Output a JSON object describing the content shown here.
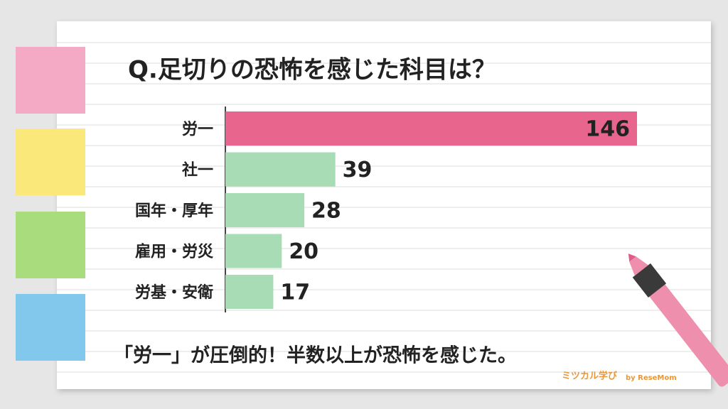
{
  "chart_data": {
    "type": "bar",
    "orientation": "horizontal",
    "title": "Q.足切りの恐怖を感じた科目は？",
    "categories": [
      "労一",
      "社一",
      "国年・厚年",
      "雇用・労災",
      "労基・安衛"
    ],
    "values": [
      146,
      39,
      28,
      20,
      17
    ],
    "colors": [
      "#e8668e",
      "#a8dcb4",
      "#a8dcb4",
      "#a8dcb4",
      "#a8dcb4"
    ],
    "xlim": [
      0,
      146
    ],
    "annotation": "「労一」が圧倒的！半数以上が恐怖を感じた。",
    "brand": "ミツカル学び",
    "brand_sub": "by ReseMom"
  }
}
